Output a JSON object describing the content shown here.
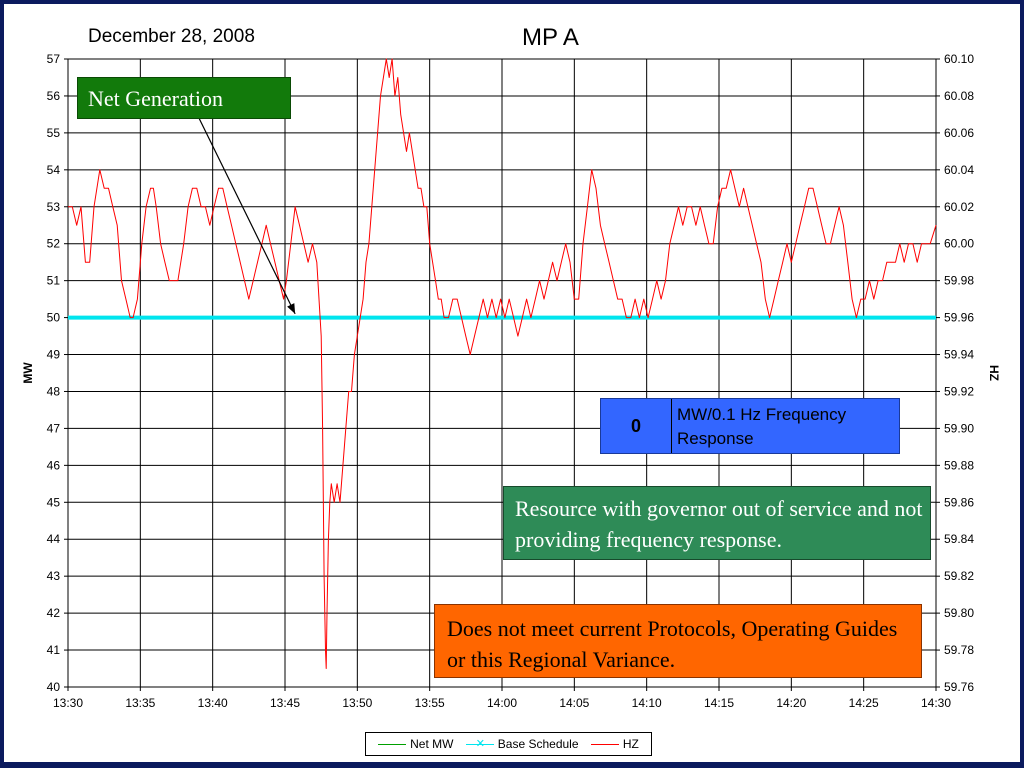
{
  "slide": {
    "background": "#0b1a5e"
  },
  "date_label": "December 28, 2008",
  "chart_data": {
    "type": "line",
    "title": "MP A",
    "ylabel": "MW",
    "y2label": "HZ",
    "ylim": [
      40,
      57
    ],
    "y2lim": [
      59.76,
      60.1
    ],
    "yticks": [
      "40",
      "41",
      "42",
      "43",
      "44",
      "45",
      "46",
      "47",
      "48",
      "49",
      "50",
      "51",
      "52",
      "53",
      "54",
      "55",
      "56",
      "57"
    ],
    "y2ticks": [
      "59.76",
      "59.78",
      "59.80",
      "59.82",
      "59.84",
      "59.86",
      "59.88",
      "59.90",
      "59.92",
      "59.94",
      "59.96",
      "59.98",
      "60.00",
      "60.02",
      "60.04",
      "60.06",
      "60.08",
      "60.10"
    ],
    "xticks": [
      "13:30",
      "13:35",
      "13:40",
      "13:45",
      "13:50",
      "13:55",
      "14:00",
      "14:05",
      "14:10",
      "14:15",
      "14:20",
      "14:25",
      "14:30"
    ],
    "xlim_minutes": [
      0,
      60
    ],
    "grid": true,
    "legend_position": "bottom",
    "series": [
      {
        "name": "Net MW",
        "axis": "left",
        "color": "#00a000",
        "marker": "none",
        "values": []
      },
      {
        "name": "Base Schedule",
        "axis": "left",
        "color": "#00e5ee",
        "marker": "x",
        "values": [
          [
            0,
            50
          ],
          [
            60,
            50
          ]
        ]
      },
      {
        "name": "HZ",
        "axis": "right",
        "color": "#ff0000",
        "marker": "none",
        "values": [
          [
            0.0,
            60.02
          ],
          [
            0.3,
            60.02
          ],
          [
            0.6,
            60.01
          ],
          [
            0.9,
            60.02
          ],
          [
            1.2,
            59.99
          ],
          [
            1.5,
            59.99
          ],
          [
            1.8,
            60.02
          ],
          [
            2.2,
            60.04
          ],
          [
            2.5,
            60.03
          ],
          [
            2.8,
            60.03
          ],
          [
            3.1,
            60.02
          ],
          [
            3.4,
            60.01
          ],
          [
            3.7,
            59.98
          ],
          [
            4.0,
            59.97
          ],
          [
            4.3,
            59.96
          ],
          [
            4.5,
            59.96
          ],
          [
            4.8,
            59.97
          ],
          [
            5.1,
            60.0
          ],
          [
            5.4,
            60.02
          ],
          [
            5.7,
            60.03
          ],
          [
            5.9,
            60.03
          ],
          [
            6.1,
            60.02
          ],
          [
            6.4,
            60.0
          ],
          [
            6.7,
            59.99
          ],
          [
            7.0,
            59.98
          ],
          [
            7.3,
            59.98
          ],
          [
            7.6,
            59.98
          ],
          [
            8.0,
            60.0
          ],
          [
            8.3,
            60.02
          ],
          [
            8.6,
            60.03
          ],
          [
            8.9,
            60.03
          ],
          [
            9.2,
            60.02
          ],
          [
            9.5,
            60.02
          ],
          [
            9.8,
            60.01
          ],
          [
            10.1,
            60.02
          ],
          [
            10.4,
            60.03
          ],
          [
            10.7,
            60.03
          ],
          [
            11.0,
            60.02
          ],
          [
            11.3,
            60.01
          ],
          [
            11.6,
            60.0
          ],
          [
            11.9,
            59.99
          ],
          [
            12.2,
            59.98
          ],
          [
            12.5,
            59.97
          ],
          [
            12.8,
            59.98
          ],
          [
            13.1,
            59.99
          ],
          [
            13.4,
            60.0
          ],
          [
            13.7,
            60.01
          ],
          [
            14.0,
            60.0
          ],
          [
            14.3,
            59.99
          ],
          [
            14.6,
            59.98
          ],
          [
            14.9,
            59.97
          ],
          [
            15.1,
            59.98
          ],
          [
            15.4,
            60.0
          ],
          [
            15.7,
            60.02
          ],
          [
            16.0,
            60.01
          ],
          [
            16.3,
            60.0
          ],
          [
            16.6,
            59.99
          ],
          [
            16.9,
            60.0
          ],
          [
            17.2,
            59.99
          ],
          [
            17.5,
            59.95
          ],
          [
            17.6,
            59.9
          ],
          [
            17.7,
            59.82
          ],
          [
            17.8,
            59.78
          ],
          [
            17.85,
            59.77
          ],
          [
            17.9,
            59.8
          ],
          [
            18.0,
            59.84
          ],
          [
            18.1,
            59.86
          ],
          [
            18.2,
            59.87
          ],
          [
            18.4,
            59.86
          ],
          [
            18.6,
            59.87
          ],
          [
            18.8,
            59.86
          ],
          [
            19.0,
            59.88
          ],
          [
            19.2,
            59.9
          ],
          [
            19.4,
            59.92
          ],
          [
            19.6,
            59.92
          ],
          [
            19.8,
            59.94
          ],
          [
            20.0,
            59.95
          ],
          [
            20.2,
            59.96
          ],
          [
            20.4,
            59.97
          ],
          [
            20.6,
            59.99
          ],
          [
            20.8,
            60.0
          ],
          [
            21.0,
            60.02
          ],
          [
            21.2,
            60.04
          ],
          [
            21.4,
            60.06
          ],
          [
            21.6,
            60.08
          ],
          [
            21.8,
            60.09
          ],
          [
            22.0,
            60.1
          ],
          [
            22.2,
            60.09
          ],
          [
            22.4,
            60.1
          ],
          [
            22.6,
            60.08
          ],
          [
            22.8,
            60.09
          ],
          [
            23.0,
            60.07
          ],
          [
            23.2,
            60.06
          ],
          [
            23.4,
            60.05
          ],
          [
            23.6,
            60.06
          ],
          [
            23.8,
            60.05
          ],
          [
            24.0,
            60.04
          ],
          [
            24.2,
            60.03
          ],
          [
            24.4,
            60.03
          ],
          [
            24.6,
            60.02
          ],
          [
            24.8,
            60.02
          ],
          [
            25.0,
            60.0
          ],
          [
            25.2,
            59.99
          ],
          [
            25.4,
            59.98
          ],
          [
            25.6,
            59.97
          ],
          [
            25.8,
            59.97
          ],
          [
            26.0,
            59.96
          ],
          [
            26.3,
            59.96
          ],
          [
            26.6,
            59.97
          ],
          [
            26.9,
            59.97
          ],
          [
            27.2,
            59.96
          ],
          [
            27.5,
            59.95
          ],
          [
            27.8,
            59.94
          ],
          [
            28.1,
            59.95
          ],
          [
            28.4,
            59.96
          ],
          [
            28.7,
            59.97
          ],
          [
            29.0,
            59.96
          ],
          [
            29.3,
            59.97
          ],
          [
            29.6,
            59.96
          ],
          [
            29.9,
            59.97
          ],
          [
            30.2,
            59.96
          ],
          [
            30.5,
            59.97
          ],
          [
            30.8,
            59.96
          ],
          [
            31.1,
            59.95
          ],
          [
            31.4,
            59.96
          ],
          [
            31.7,
            59.97
          ],
          [
            32.0,
            59.96
          ],
          [
            32.3,
            59.97
          ],
          [
            32.6,
            59.98
          ],
          [
            32.9,
            59.97
          ],
          [
            33.2,
            59.98
          ],
          [
            33.5,
            59.99
          ],
          [
            33.8,
            59.98
          ],
          [
            34.1,
            59.99
          ],
          [
            34.4,
            60.0
          ],
          [
            34.7,
            59.99
          ],
          [
            35.0,
            59.97
          ],
          [
            35.3,
            59.97
          ],
          [
            35.6,
            60.0
          ],
          [
            35.9,
            60.02
          ],
          [
            36.2,
            60.04
          ],
          [
            36.5,
            60.03
          ],
          [
            36.8,
            60.01
          ],
          [
            37.1,
            60.0
          ],
          [
            37.4,
            59.99
          ],
          [
            37.7,
            59.98
          ],
          [
            38.0,
            59.97
          ],
          [
            38.3,
            59.97
          ],
          [
            38.6,
            59.96
          ],
          [
            38.9,
            59.96
          ],
          [
            39.2,
            59.97
          ],
          [
            39.5,
            59.96
          ],
          [
            39.8,
            59.97
          ],
          [
            40.1,
            59.96
          ],
          [
            40.4,
            59.97
          ],
          [
            40.7,
            59.98
          ],
          [
            41.0,
            59.97
          ],
          [
            41.3,
            59.98
          ],
          [
            41.6,
            60.0
          ],
          [
            41.9,
            60.01
          ],
          [
            42.2,
            60.02
          ],
          [
            42.5,
            60.01
          ],
          [
            42.8,
            60.02
          ],
          [
            43.1,
            60.02
          ],
          [
            43.4,
            60.01
          ],
          [
            43.7,
            60.02
          ],
          [
            44.0,
            60.01
          ],
          [
            44.3,
            60.0
          ],
          [
            44.6,
            60.0
          ],
          [
            44.9,
            60.02
          ],
          [
            45.2,
            60.03
          ],
          [
            45.5,
            60.03
          ],
          [
            45.8,
            60.04
          ],
          [
            46.1,
            60.03
          ],
          [
            46.4,
            60.02
          ],
          [
            46.7,
            60.03
          ],
          [
            47.0,
            60.02
          ],
          [
            47.3,
            60.01
          ],
          [
            47.6,
            60.0
          ],
          [
            47.9,
            59.99
          ],
          [
            48.2,
            59.97
          ],
          [
            48.5,
            59.96
          ],
          [
            48.8,
            59.97
          ],
          [
            49.1,
            59.98
          ],
          [
            49.4,
            59.99
          ],
          [
            49.7,
            60.0
          ],
          [
            50.0,
            59.99
          ],
          [
            50.3,
            60.0
          ],
          [
            50.6,
            60.01
          ],
          [
            50.9,
            60.02
          ],
          [
            51.2,
            60.03
          ],
          [
            51.5,
            60.03
          ],
          [
            51.8,
            60.02
          ],
          [
            52.1,
            60.01
          ],
          [
            52.4,
            60.0
          ],
          [
            52.7,
            60.0
          ],
          [
            53.0,
            60.01
          ],
          [
            53.3,
            60.02
          ],
          [
            53.6,
            60.01
          ],
          [
            53.9,
            59.99
          ],
          [
            54.2,
            59.97
          ],
          [
            54.5,
            59.96
          ],
          [
            54.8,
            59.97
          ],
          [
            55.1,
            59.97
          ],
          [
            55.4,
            59.98
          ],
          [
            55.7,
            59.97
          ],
          [
            56.0,
            59.98
          ],
          [
            56.3,
            59.98
          ],
          [
            56.6,
            59.99
          ],
          [
            56.9,
            59.99
          ],
          [
            57.2,
            59.99
          ],
          [
            57.5,
            60.0
          ],
          [
            57.8,
            59.99
          ],
          [
            58.1,
            60.0
          ],
          [
            58.4,
            60.0
          ],
          [
            58.7,
            59.99
          ],
          [
            59.0,
            60.0
          ],
          [
            59.3,
            60.0
          ],
          [
            59.6,
            60.0
          ],
          [
            60.0,
            60.01
          ]
        ]
      }
    ],
    "annotations": [
      {
        "text": "Net Generation",
        "color": "#127a0b",
        "arrow_to_minute": 15.7,
        "arrow_to_mw": 50.1
      }
    ]
  },
  "net_generation_label": "Net Generation",
  "response_box": {
    "value": "0",
    "label": "MW/0.1 Hz Frequency Response",
    "color": "#3366ff"
  },
  "governor_note": {
    "text": "Resource with governor out of service and not providing frequency response.",
    "color": "#2e8b57"
  },
  "protocol_note": {
    "text": "Does not meet current Protocols, Operating Guides or this Regional Variance.",
    "color": "#ff6600"
  },
  "legend": {
    "items": [
      "Net MW",
      "Base Schedule",
      "HZ"
    ]
  }
}
